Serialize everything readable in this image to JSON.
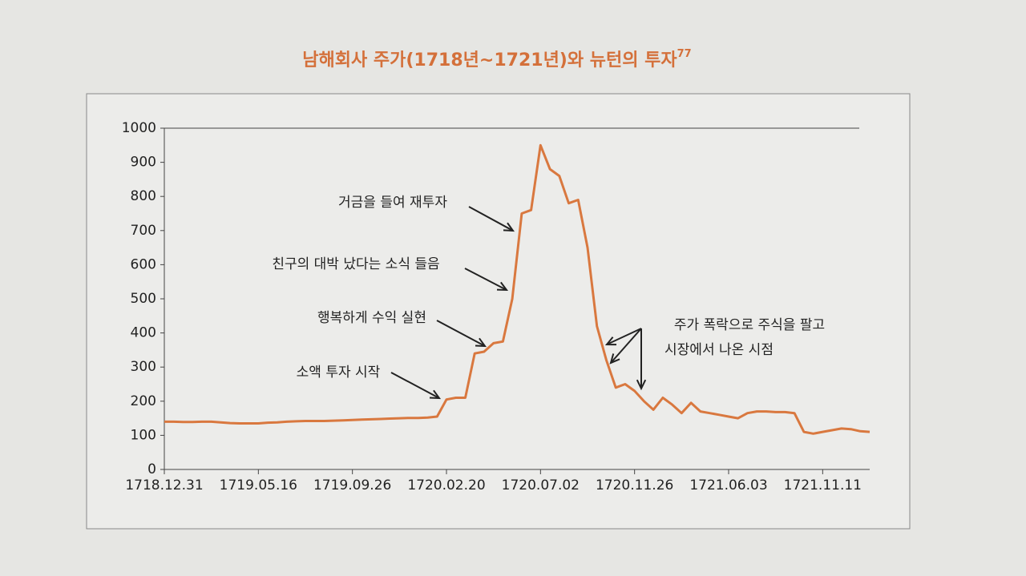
{
  "chart_data": {
    "type": "line",
    "title": "남해회사 주가(1718년~1721년)와 뉴턴의 투자",
    "title_note": "77",
    "categories": [
      "1718.12.31",
      null,
      null,
      null,
      null,
      null,
      null,
      null,
      null,
      null,
      "1719.05.16",
      null,
      null,
      null,
      null,
      null,
      null,
      null,
      null,
      null,
      "1719.09.26",
      null,
      null,
      null,
      null,
      null,
      null,
      null,
      null,
      null,
      "1720.02.20",
      null,
      null,
      null,
      null,
      null,
      null,
      null,
      null,
      null,
      "1720.07.02",
      null,
      null,
      null,
      null,
      null,
      null,
      null,
      null,
      null,
      "1720.11.26",
      null,
      null,
      null,
      null,
      null,
      null,
      null,
      null,
      null,
      "1721.06.03",
      null,
      null,
      null,
      null,
      null,
      null,
      null,
      null,
      null,
      "1721.11.11",
      null,
      null,
      null,
      null,
      null
    ],
    "series": [
      {
        "color": "#d9783f",
        "values": [
          140,
          140,
          139,
          139,
          140,
          140,
          138,
          136,
          135,
          135,
          135,
          137,
          138,
          140,
          141,
          142,
          142,
          142,
          143,
          144,
          145,
          146,
          147,
          148,
          149,
          150,
          151,
          151,
          152,
          155,
          205,
          210,
          210,
          340,
          345,
          370,
          375,
          500,
          750,
          760,
          950,
          880,
          860,
          780,
          790,
          650,
          420,
          320,
          240,
          250,
          230,
          200,
          175,
          210,
          190,
          165,
          195,
          170,
          165,
          160,
          155,
          150,
          165,
          170,
          170,
          168,
          168,
          165,
          110,
          105,
          110,
          115,
          120,
          118,
          112,
          110
        ]
      }
    ],
    "ylim": [
      0,
      1000
    ],
    "yticks": [
      0,
      100,
      200,
      300,
      400,
      500,
      600,
      700,
      800,
      900,
      1000
    ],
    "annotations": [
      "거금을 들여 재투자",
      "친구의 대박 났다는 소식 들음",
      "행복하게 수익 실현",
      "소액 투자 시작",
      "주가 폭락으로 주식을 팔고",
      "시장에서 나온 시점"
    ]
  }
}
